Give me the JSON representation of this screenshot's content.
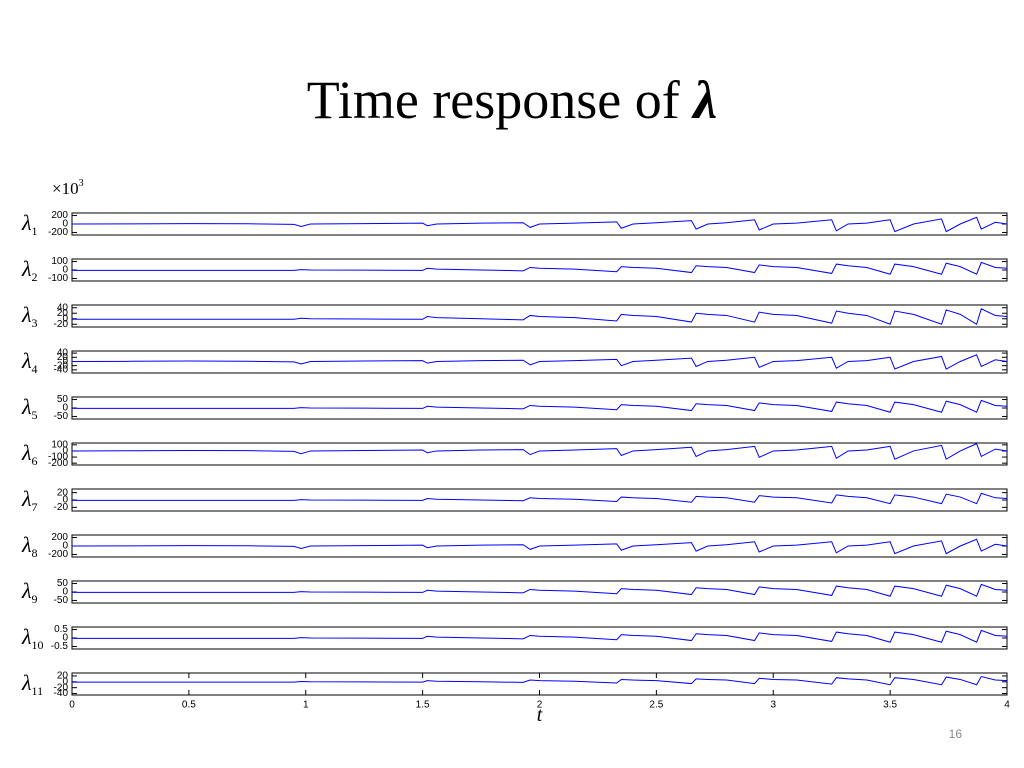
{
  "title": "Time response of ",
  "title_symbol": "λ",
  "multiplier": "×10",
  "multiplier_exp": "3",
  "page_number": "16",
  "chart_data": [
    {
      "type": "line",
      "ylabel": "λ",
      "ylabel_sub": "1",
      "xlim": [
        0,
        4
      ],
      "ylim": [
        -260,
        260
      ],
      "yticks": [
        -200,
        0,
        200
      ],
      "x": [
        0,
        0.25,
        0.5,
        0.75,
        0.95,
        0.98,
        1.02,
        1.25,
        1.5,
        1.52,
        1.56,
        1.75,
        1.93,
        1.96,
        2.0,
        2.15,
        2.33,
        2.35,
        2.4,
        2.5,
        2.65,
        2.67,
        2.72,
        2.8,
        2.92,
        2.94,
        3.0,
        3.1,
        3.25,
        3.27,
        3.32,
        3.4,
        3.5,
        3.52,
        3.6,
        3.72,
        3.74,
        3.8,
        3.87,
        3.89,
        3.95,
        4.0
      ],
      "series": [
        {
          "color": "#0000ff",
          "values": [
            0,
            4,
            10,
            6,
            -10,
            -60,
            0,
            10,
            20,
            -40,
            0,
            20,
            30,
            -80,
            0,
            20,
            50,
            -100,
            0,
            30,
            80,
            -120,
            0,
            30,
            100,
            -140,
            0,
            20,
            100,
            -160,
            0,
            20,
            100,
            -180,
            0,
            120,
            -180,
            0,
            160,
            -120,
            40,
            0
          ]
        }
      ]
    },
    {
      "type": "line",
      "ylabel": "λ",
      "ylabel_sub": "2",
      "xlim": [
        0,
        4
      ],
      "ylim": [
        -130,
        130
      ],
      "yticks": [
        -100,
        0,
        100
      ],
      "x": [
        0,
        0.25,
        0.5,
        0.75,
        0.95,
        0.98,
        1.02,
        1.25,
        1.5,
        1.52,
        1.56,
        1.75,
        1.93,
        1.96,
        2.0,
        2.15,
        2.33,
        2.35,
        2.4,
        2.5,
        2.65,
        2.67,
        2.72,
        2.8,
        2.92,
        2.94,
        3.0,
        3.1,
        3.25,
        3.27,
        3.32,
        3.4,
        3.5,
        3.52,
        3.6,
        3.72,
        3.74,
        3.8,
        3.87,
        3.89,
        3.95,
        4.0
      ],
      "series": [
        {
          "color": "#0000ff",
          "values": [
            -5,
            -5,
            -5,
            -5,
            -5,
            5,
            0,
            -2,
            -5,
            20,
            10,
            0,
            -10,
            30,
            20,
            10,
            -20,
            40,
            30,
            20,
            -30,
            50,
            40,
            30,
            -30,
            60,
            40,
            30,
            -40,
            70,
            50,
            30,
            -50,
            70,
            40,
            -50,
            80,
            40,
            -50,
            90,
            30,
            20
          ]
        }
      ]
    },
    {
      "type": "line",
      "ylabel": "λ",
      "ylabel_sub": "3",
      "xlim": [
        0,
        4
      ],
      "ylim": [
        -30,
        50
      ],
      "yticks": [
        -20,
        0,
        20,
        40
      ],
      "x": [
        0,
        0.25,
        0.5,
        0.75,
        0.95,
        0.98,
        1.02,
        1.25,
        1.5,
        1.52,
        1.56,
        1.75,
        1.93,
        1.96,
        2.0,
        2.15,
        2.33,
        2.35,
        2.4,
        2.5,
        2.65,
        2.67,
        2.72,
        2.8,
        2.92,
        2.94,
        3.0,
        3.1,
        3.25,
        3.27,
        3.32,
        3.4,
        3.5,
        3.52,
        3.6,
        3.72,
        3.74,
        3.8,
        3.87,
        3.89,
        3.95,
        4.0
      ],
      "series": [
        {
          "color": "#0000ff",
          "values": [
            -2,
            -2,
            -2,
            -2,
            -2,
            2,
            0,
            -0.8,
            -2,
            8,
            4,
            0,
            -4,
            12,
            8,
            4,
            -8,
            16,
            12,
            8,
            -12,
            20,
            16,
            12,
            -12,
            24,
            16,
            12,
            -16,
            28,
            20,
            12,
            -20,
            28,
            16,
            -20,
            32,
            16,
            -20,
            36,
            12,
            8
          ]
        }
      ]
    },
    {
      "type": "line",
      "ylabel": "λ",
      "ylabel_sub": "4",
      "xlim": [
        0,
        4
      ],
      "ylim": [
        -55,
        50
      ],
      "yticks": [
        -40,
        -20,
        0,
        20,
        40
      ],
      "x": [
        0,
        0.25,
        0.5,
        0.75,
        0.95,
        0.98,
        1.02,
        1.25,
        1.5,
        1.52,
        1.56,
        1.75,
        1.93,
        1.96,
        2.0,
        2.15,
        2.33,
        2.35,
        2.4,
        2.5,
        2.65,
        2.67,
        2.72,
        2.8,
        2.92,
        2.94,
        3.0,
        3.1,
        3.25,
        3.27,
        3.32,
        3.4,
        3.5,
        3.52,
        3.6,
        3.72,
        3.74,
        3.8,
        3.87,
        3.89,
        3.95,
        4.0
      ],
      "series": [
        {
          "color": "#0000ff",
          "values": [
            0,
            0.8,
            2,
            1.2,
            -2,
            -12,
            0,
            2,
            4,
            -8,
            0,
            4,
            6,
            -16,
            0,
            4,
            10,
            -20,
            0,
            6,
            16,
            -24,
            0,
            6,
            20,
            -28,
            0,
            4,
            20,
            -32,
            0,
            4,
            20,
            -36,
            0,
            24,
            -36,
            0,
            32,
            -24,
            8,
            0
          ]
        }
      ]
    },
    {
      "type": "line",
      "ylabel": "λ",
      "ylabel_sub": "5",
      "xlim": [
        0,
        4
      ],
      "ylim": [
        -65,
        65
      ],
      "yticks": [
        -50,
        0,
        50
      ],
      "x": [
        0,
        0.25,
        0.5,
        0.75,
        0.95,
        0.98,
        1.02,
        1.25,
        1.5,
        1.52,
        1.56,
        1.75,
        1.93,
        1.96,
        2.0,
        2.15,
        2.33,
        2.35,
        2.4,
        2.5,
        2.65,
        2.67,
        2.72,
        2.8,
        2.92,
        2.94,
        3.0,
        3.1,
        3.25,
        3.27,
        3.32,
        3.4,
        3.5,
        3.52,
        3.6,
        3.72,
        3.74,
        3.8,
        3.87,
        3.89,
        3.95,
        4.0
      ],
      "series": [
        {
          "color": "#0000ff",
          "values": [
            -2.5,
            -2.5,
            -2.5,
            -2.5,
            -2.5,
            2.5,
            0,
            -1,
            -2.5,
            10,
            5,
            0,
            -5,
            15,
            10,
            5,
            -10,
            20,
            15,
            10,
            -15,
            25,
            20,
            15,
            -15,
            30,
            20,
            15,
            -20,
            35,
            25,
            15,
            -25,
            35,
            20,
            -25,
            40,
            20,
            -25,
            45,
            15,
            10
          ]
        }
      ]
    },
    {
      "type": "line",
      "ylabel": "λ",
      "ylabel_sub": "6",
      "xlim": [
        0,
        4
      ],
      "ylim": [
        -230,
        130
      ],
      "yticks": [
        -200,
        -100,
        0,
        100
      ],
      "x": [
        0,
        0.25,
        0.5,
        0.75,
        0.95,
        0.98,
        1.02,
        1.25,
        1.5,
        1.52,
        1.56,
        1.75,
        1.93,
        1.96,
        2.0,
        2.15,
        2.33,
        2.35,
        2.4,
        2.5,
        2.65,
        2.67,
        2.72,
        2.8,
        2.92,
        2.94,
        3.0,
        3.1,
        3.25,
        3.27,
        3.32,
        3.4,
        3.5,
        3.52,
        3.6,
        3.72,
        3.74,
        3.8,
        3.87,
        3.89,
        3.95,
        4.0
      ],
      "series": [
        {
          "color": "#0000ff",
          "values": [
            0,
            3,
            7.5,
            4.5,
            -7.5,
            -45,
            0,
            7.5,
            15,
            -30,
            0,
            15,
            22.5,
            -60,
            0,
            15,
            37.5,
            -75,
            0,
            22.5,
            60,
            -90,
            0,
            22.5,
            75,
            -105,
            0,
            15,
            75,
            -120,
            0,
            15,
            75,
            -135,
            0,
            90,
            -135,
            0,
            120,
            -90,
            30,
            0
          ]
        }
      ]
    },
    {
      "type": "line",
      "ylabel": "λ",
      "ylabel_sub": "7",
      "xlim": [
        0,
        4
      ],
      "ylim": [
        -30,
        30
      ],
      "yticks": [
        -20,
        0,
        20
      ],
      "x": [
        0,
        0.25,
        0.5,
        0.75,
        0.95,
        0.98,
        1.02,
        1.25,
        1.5,
        1.52,
        1.56,
        1.75,
        1.93,
        1.96,
        2.0,
        2.15,
        2.33,
        2.35,
        2.4,
        2.5,
        2.65,
        2.67,
        2.72,
        2.8,
        2.92,
        2.94,
        3.0,
        3.1,
        3.25,
        3.27,
        3.32,
        3.4,
        3.5,
        3.52,
        3.6,
        3.72,
        3.74,
        3.8,
        3.87,
        3.89,
        3.95,
        4.0
      ],
      "series": [
        {
          "color": "#0000ff",
          "values": [
            -1,
            -1,
            -1,
            -1,
            -1,
            1,
            0,
            -0.4,
            -1,
            4,
            2,
            0,
            -2,
            6,
            4,
            2,
            -4,
            8,
            6,
            4,
            -6,
            10,
            8,
            6,
            -6,
            12,
            8,
            6,
            -8,
            14,
            10,
            6,
            -10,
            14,
            8,
            -10,
            16,
            8,
            -10,
            18,
            6,
            4
          ]
        }
      ]
    },
    {
      "type": "line",
      "ylabel": "λ",
      "ylabel_sub": "8",
      "xlim": [
        0,
        4
      ],
      "ylim": [
        -260,
        260
      ],
      "yticks": [
        -200,
        0,
        200
      ],
      "x": [
        0,
        0.25,
        0.5,
        0.75,
        0.95,
        0.98,
        1.02,
        1.25,
        1.5,
        1.52,
        1.56,
        1.75,
        1.93,
        1.96,
        2.0,
        2.15,
        2.33,
        2.35,
        2.4,
        2.5,
        2.65,
        2.67,
        2.72,
        2.8,
        2.92,
        2.94,
        3.0,
        3.1,
        3.25,
        3.27,
        3.32,
        3.4,
        3.5,
        3.52,
        3.6,
        3.72,
        3.74,
        3.8,
        3.87,
        3.89,
        3.95,
        4.0
      ],
      "series": [
        {
          "color": "#0000ff",
          "values": [
            0,
            4,
            10,
            6,
            -10,
            -60,
            0,
            10,
            20,
            -40,
            0,
            20,
            30,
            -80,
            0,
            20,
            50,
            -100,
            0,
            30,
            80,
            -120,
            0,
            30,
            100,
            -140,
            0,
            20,
            100,
            -160,
            0,
            20,
            100,
            -180,
            0,
            120,
            -180,
            0,
            160,
            -120,
            40,
            0
          ]
        }
      ]
    },
    {
      "type": "line",
      "ylabel": "λ",
      "ylabel_sub": "9",
      "xlim": [
        0,
        4
      ],
      "ylim": [
        -65,
        65
      ],
      "yticks": [
        -50,
        0,
        50
      ],
      "x": [
        0,
        0.25,
        0.5,
        0.75,
        0.95,
        0.98,
        1.02,
        1.25,
        1.5,
        1.52,
        1.56,
        1.75,
        1.93,
        1.96,
        2.0,
        2.15,
        2.33,
        2.35,
        2.4,
        2.5,
        2.65,
        2.67,
        2.72,
        2.8,
        2.92,
        2.94,
        3.0,
        3.1,
        3.25,
        3.27,
        3.32,
        3.4,
        3.5,
        3.52,
        3.6,
        3.72,
        3.74,
        3.8,
        3.87,
        3.89,
        3.95,
        4.0
      ],
      "series": [
        {
          "color": "#0000ff",
          "values": [
            -2.5,
            -2.5,
            -2.5,
            -2.5,
            -2.5,
            2.5,
            0,
            -1,
            -2.5,
            10,
            5,
            0,
            -5,
            15,
            10,
            5,
            -10,
            20,
            15,
            10,
            -15,
            25,
            20,
            15,
            -15,
            30,
            20,
            15,
            -20,
            35,
            25,
            15,
            -25,
            35,
            20,
            -25,
            40,
            20,
            -25,
            45,
            15,
            10
          ]
        }
      ]
    },
    {
      "type": "line",
      "ylabel": "λ",
      "ylabel_sub": "10",
      "xlim": [
        0,
        4
      ],
      "ylim": [
        -0.65,
        0.65
      ],
      "yticks": [
        -0.5,
        0,
        0.5
      ],
      "x": [
        0,
        0.25,
        0.5,
        0.75,
        0.95,
        0.98,
        1.02,
        1.25,
        1.5,
        1.52,
        1.56,
        1.75,
        1.93,
        1.96,
        2.0,
        2.15,
        2.33,
        2.35,
        2.4,
        2.5,
        2.65,
        2.67,
        2.72,
        2.8,
        2.92,
        2.94,
        3.0,
        3.1,
        3.25,
        3.27,
        3.32,
        3.4,
        3.5,
        3.52,
        3.6,
        3.72,
        3.74,
        3.8,
        3.87,
        3.89,
        3.95,
        4.0
      ],
      "series": [
        {
          "color": "#0000ff",
          "values": [
            -0.025,
            -0.025,
            -0.025,
            -0.025,
            -0.025,
            0.025,
            0,
            -0.01,
            -0.025,
            0.1,
            0.05,
            0,
            -0.05,
            0.15,
            0.1,
            0.05,
            -0.1,
            0.2,
            0.15,
            0.1,
            -0.15,
            0.25,
            0.2,
            0.15,
            -0.15,
            0.3,
            0.2,
            0.15,
            -0.2,
            0.35,
            0.25,
            0.15,
            -0.25,
            0.35,
            0.2,
            -0.25,
            0.4,
            0.2,
            -0.25,
            0.45,
            0.15,
            0.1
          ]
        }
      ]
    },
    {
      "type": "line",
      "ylabel": "λ",
      "ylabel_sub": "11",
      "xlim": [
        0,
        4
      ],
      "ylim": [
        -45,
        30
      ],
      "yticks": [
        -40,
        -20,
        0,
        20
      ],
      "xticks": [
        0,
        0.5,
        1,
        1.5,
        2,
        2.5,
        3,
        3.5,
        4
      ],
      "xlabel": "t",
      "x": [
        0,
        0.25,
        0.5,
        0.75,
        0.95,
        0.98,
        1.02,
        1.25,
        1.5,
        1.52,
        1.56,
        1.75,
        1.93,
        1.96,
        2.0,
        2.15,
        2.33,
        2.35,
        2.4,
        2.5,
        2.65,
        2.67,
        2.72,
        2.8,
        2.92,
        2.94,
        3.0,
        3.1,
        3.25,
        3.27,
        3.32,
        3.4,
        3.5,
        3.52,
        3.6,
        3.72,
        3.74,
        3.8,
        3.87,
        3.89,
        3.95,
        4.0
      ],
      "series": [
        {
          "color": "#0000ff",
          "values": [
            -1,
            -1,
            -1,
            -1,
            -1,
            1,
            0,
            -0.4,
            -1,
            4,
            2,
            0,
            -2,
            6,
            4,
            2,
            -4,
            8,
            6,
            4,
            -6,
            10,
            8,
            6,
            -6,
            12,
            8,
            6,
            -8,
            14,
            10,
            6,
            -10,
            14,
            8,
            -10,
            16,
            8,
            -10,
            18,
            6,
            4
          ]
        }
      ]
    }
  ]
}
